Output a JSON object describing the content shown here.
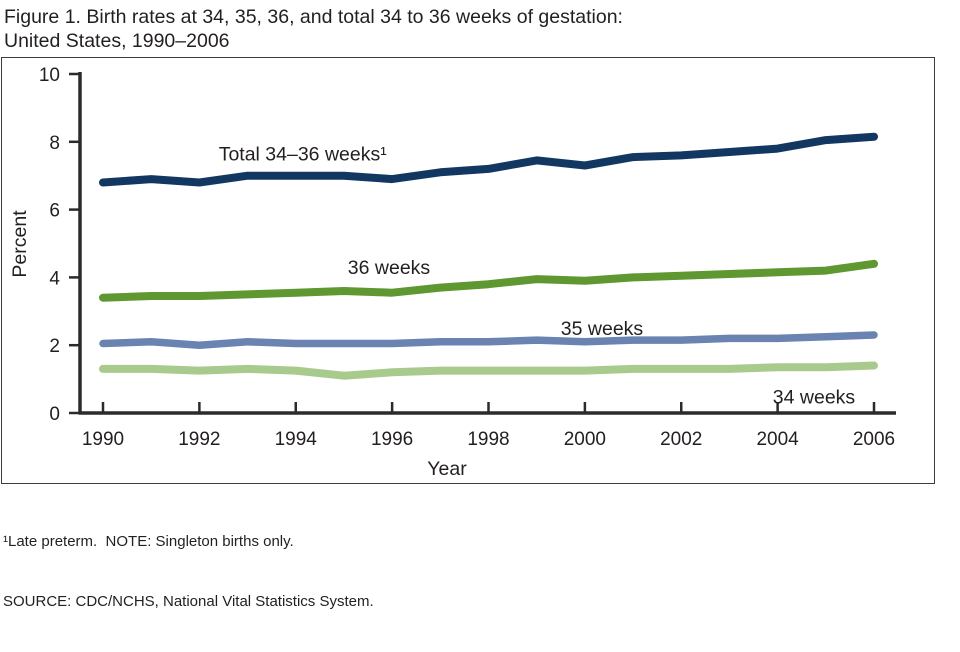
{
  "figure": {
    "title_line1": "Figure 1. Birth rates at 34, 35, 36, and total 34 to 36 weeks of gestation:",
    "title_line2": "United States, 1990–2006",
    "footnote_line1": "¹Late preterm.  NOTE: Singleton births only.",
    "footnote_line2": "SOURCE: CDC/NCHS, National Vital Statistics System."
  },
  "chart_data": {
    "type": "line",
    "title": "Birth rates at 34, 35, 36, and total 34 to 36 weeks of gestation: United States, 1990–2006",
    "xlabel": "Year",
    "ylabel": "Percent",
    "xlim": [
      1990,
      2006
    ],
    "ylim": [
      0,
      10
    ],
    "x_ticks": [
      1990,
      1992,
      1994,
      1996,
      1998,
      2000,
      2002,
      2004,
      2006
    ],
    "y_ticks": [
      0,
      2,
      4,
      6,
      8,
      10
    ],
    "grid": false,
    "legend": "inline-labels",
    "x": [
      1990,
      1991,
      1992,
      1993,
      1994,
      1995,
      1996,
      1997,
      1998,
      1999,
      2000,
      2001,
      2002,
      2003,
      2004,
      2005,
      2006
    ],
    "series": [
      {
        "name": "Total 34–36 weeks¹",
        "color": "#123862",
        "stroke_width": 8,
        "values": [
          6.8,
          6.9,
          6.8,
          7.0,
          7.0,
          7.0,
          6.9,
          7.1,
          7.2,
          7.45,
          7.3,
          7.55,
          7.6,
          7.7,
          7.8,
          8.05,
          8.15
        ]
      },
      {
        "name": "36 weeks",
        "color": "#5f9730",
        "stroke_width": 8,
        "values": [
          3.4,
          3.45,
          3.45,
          3.5,
          3.55,
          3.6,
          3.55,
          3.7,
          3.8,
          3.95,
          3.9,
          4.0,
          4.05,
          4.1,
          4.15,
          4.2,
          4.4
        ]
      },
      {
        "name": "35 weeks",
        "color": "#6a83b1",
        "stroke_width": 7.5,
        "values": [
          2.05,
          2.1,
          2.0,
          2.1,
          2.05,
          2.05,
          2.05,
          2.1,
          2.1,
          2.15,
          2.1,
          2.15,
          2.15,
          2.2,
          2.2,
          2.25,
          2.3
        ]
      },
      {
        "name": "34 weeks",
        "color": "#a9ca8d",
        "stroke_width": 8,
        "values": [
          1.3,
          1.3,
          1.25,
          1.3,
          1.25,
          1.1,
          1.2,
          1.25,
          1.25,
          1.25,
          1.25,
          1.3,
          1.3,
          1.3,
          1.35,
          1.35,
          1.4
        ]
      }
    ],
    "annotations": [
      {
        "text": "Total 34–36 weeks¹",
        "year": 1992.4,
        "value": 7.45,
        "anchor": "start"
      },
      {
        "text": "36 weeks",
        "year": 1995.08,
        "value": 4.1,
        "anchor": "start"
      },
      {
        "text": "35 weeks",
        "year": 1999.5,
        "value": 2.3,
        "anchor": "start"
      },
      {
        "text": "34 weeks",
        "year": 2003.9,
        "value": 0.28,
        "anchor": "start"
      }
    ],
    "axis_color": "#2b2b2b"
  }
}
